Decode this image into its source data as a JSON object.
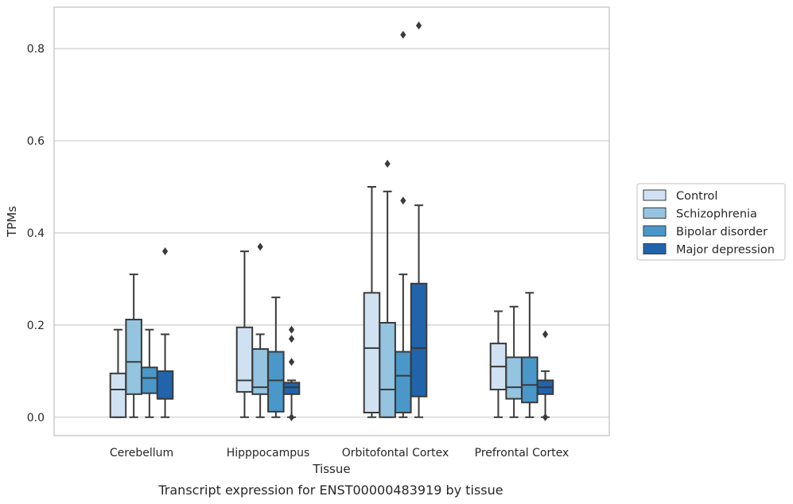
{
  "chart_data": {
    "type": "box",
    "caption": "Transcript expression for ENST00000483919 by tissue",
    "xlabel": "Tissue",
    "ylabel": "TPMs",
    "ylim": [
      -0.04,
      0.89
    ],
    "yticks": [
      0.0,
      0.2,
      0.4,
      0.6,
      0.8
    ],
    "ytick_labels": [
      "0.0",
      "0.2",
      "0.4",
      "0.6",
      "0.8"
    ],
    "grid": "horizontal",
    "legend_position": "right",
    "categories": [
      "Cerebellum",
      "Hipppocampus",
      "Orbitofontal Cortex",
      "Prefrontal Cortex"
    ],
    "series": [
      {
        "name": "Control",
        "color": "#d0e1f2",
        "boxes": [
          {
            "whislo": 0.0,
            "q1": 0.0,
            "med": 0.06,
            "q3": 0.095,
            "whishi": 0.19,
            "fliers": []
          },
          {
            "whislo": 0.0,
            "q1": 0.055,
            "med": 0.08,
            "q3": 0.195,
            "whishi": 0.36,
            "fliers": []
          },
          {
            "whislo": 0.0,
            "q1": 0.01,
            "med": 0.15,
            "q3": 0.27,
            "whishi": 0.5,
            "fliers": []
          },
          {
            "whislo": 0.0,
            "q1": 0.06,
            "med": 0.11,
            "q3": 0.16,
            "whishi": 0.23,
            "fliers": []
          }
        ]
      },
      {
        "name": "Schizophrenia",
        "color": "#94c4df",
        "boxes": [
          {
            "whislo": 0.0,
            "q1": 0.05,
            "med": 0.12,
            "q3": 0.212,
            "whishi": 0.31,
            "fliers": []
          },
          {
            "whislo": 0.0,
            "q1": 0.05,
            "med": 0.065,
            "q3": 0.148,
            "whishi": 0.18,
            "fliers": [
              0.37
            ]
          },
          {
            "whislo": 0.0,
            "q1": 0.0,
            "med": 0.06,
            "q3": 0.205,
            "whishi": 0.49,
            "fliers": [
              0.55
            ]
          },
          {
            "whislo": 0.0,
            "q1": 0.04,
            "med": 0.065,
            "q3": 0.13,
            "whishi": 0.24,
            "fliers": []
          }
        ]
      },
      {
        "name": "Bipolar disorder",
        "color": "#4a98c9",
        "boxes": [
          {
            "whislo": 0.0,
            "q1": 0.052,
            "med": 0.085,
            "q3": 0.108,
            "whishi": 0.19,
            "fliers": []
          },
          {
            "whislo": 0.0,
            "q1": 0.012,
            "med": 0.08,
            "q3": 0.142,
            "whishi": 0.26,
            "fliers": []
          },
          {
            "whislo": 0.0,
            "q1": 0.01,
            "med": 0.09,
            "q3": 0.142,
            "whishi": 0.31,
            "fliers": [
              0.47,
              0.83
            ]
          },
          {
            "whislo": 0.0,
            "q1": 0.032,
            "med": 0.07,
            "q3": 0.13,
            "whishi": 0.27,
            "fliers": []
          }
        ]
      },
      {
        "name": "Major depression",
        "color": "#2164ab",
        "boxes": [
          {
            "whislo": 0.0,
            "q1": 0.04,
            "med": 0.04,
            "q3": 0.1,
            "whishi": 0.18,
            "fliers": [
              0.36
            ]
          },
          {
            "whislo": 0.0,
            "q1": 0.05,
            "med": 0.065,
            "q3": 0.075,
            "whishi": 0.08,
            "fliers": [
              0.19,
              0.17,
              0.12,
              0.0
            ]
          },
          {
            "whislo": 0.0,
            "q1": 0.045,
            "med": 0.15,
            "q3": 0.29,
            "whishi": 0.46,
            "fliers": [
              0.85
            ]
          },
          {
            "whislo": 0.0,
            "q1": 0.05,
            "med": 0.065,
            "q3": 0.08,
            "whishi": 0.1,
            "fliers": [
              0.18,
              0.0
            ]
          }
        ]
      }
    ]
  }
}
